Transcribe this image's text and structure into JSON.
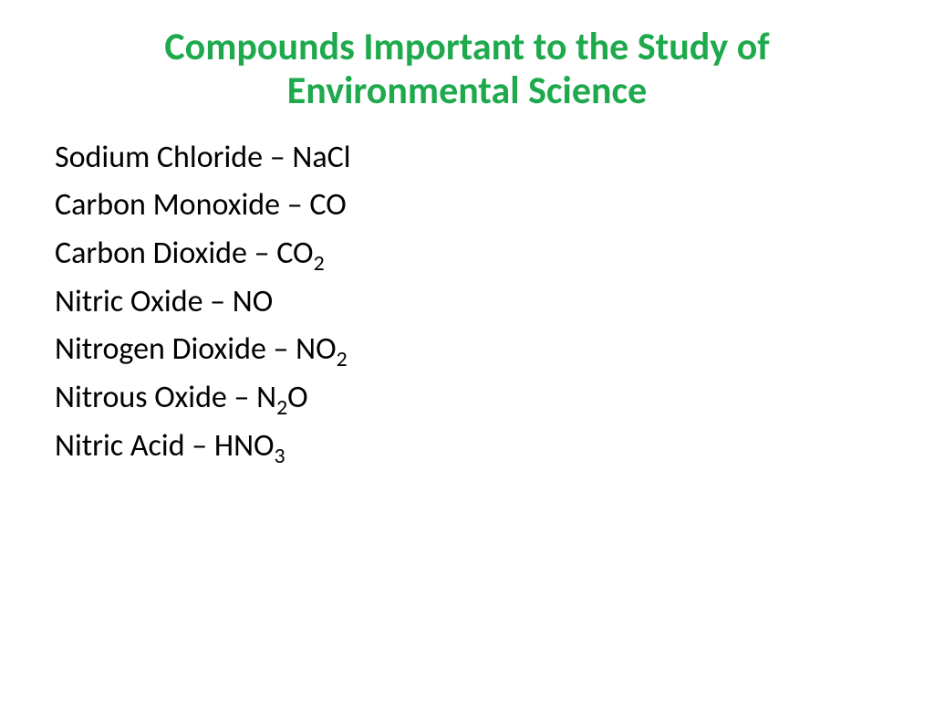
{
  "title": {
    "line1": "Compounds Important to the Study of",
    "line2": "Environmental Science",
    "color": "#1ea94d",
    "fontsize": 42
  },
  "body": {
    "color": "#000000",
    "fontsize": 34,
    "compounds": [
      {
        "name": "Sodium Chloride",
        "formula_parts": [
          {
            "t": "NaCl"
          }
        ]
      },
      {
        "name": "Carbon Monoxide",
        "formula_parts": [
          {
            "t": "CO"
          }
        ]
      },
      {
        "name": "Carbon Dioxide",
        "formula_parts": [
          {
            "t": "CO"
          },
          {
            "s": "2"
          }
        ]
      },
      {
        "name": "Nitric Oxide",
        "formula_parts": [
          {
            "t": "NO"
          }
        ]
      },
      {
        "name": "Nitrogen Dioxide",
        "formula_parts": [
          {
            "t": "NO"
          },
          {
            "s": "2"
          }
        ]
      },
      {
        "name": "Nitrous Oxide",
        "formula_parts": [
          {
            "t": "N"
          },
          {
            "s": "2"
          },
          {
            "t": "O"
          }
        ]
      },
      {
        "name": "Nitric Acid",
        "formula_parts": [
          {
            "t": "HNO"
          },
          {
            "s": "3"
          }
        ]
      }
    ]
  }
}
